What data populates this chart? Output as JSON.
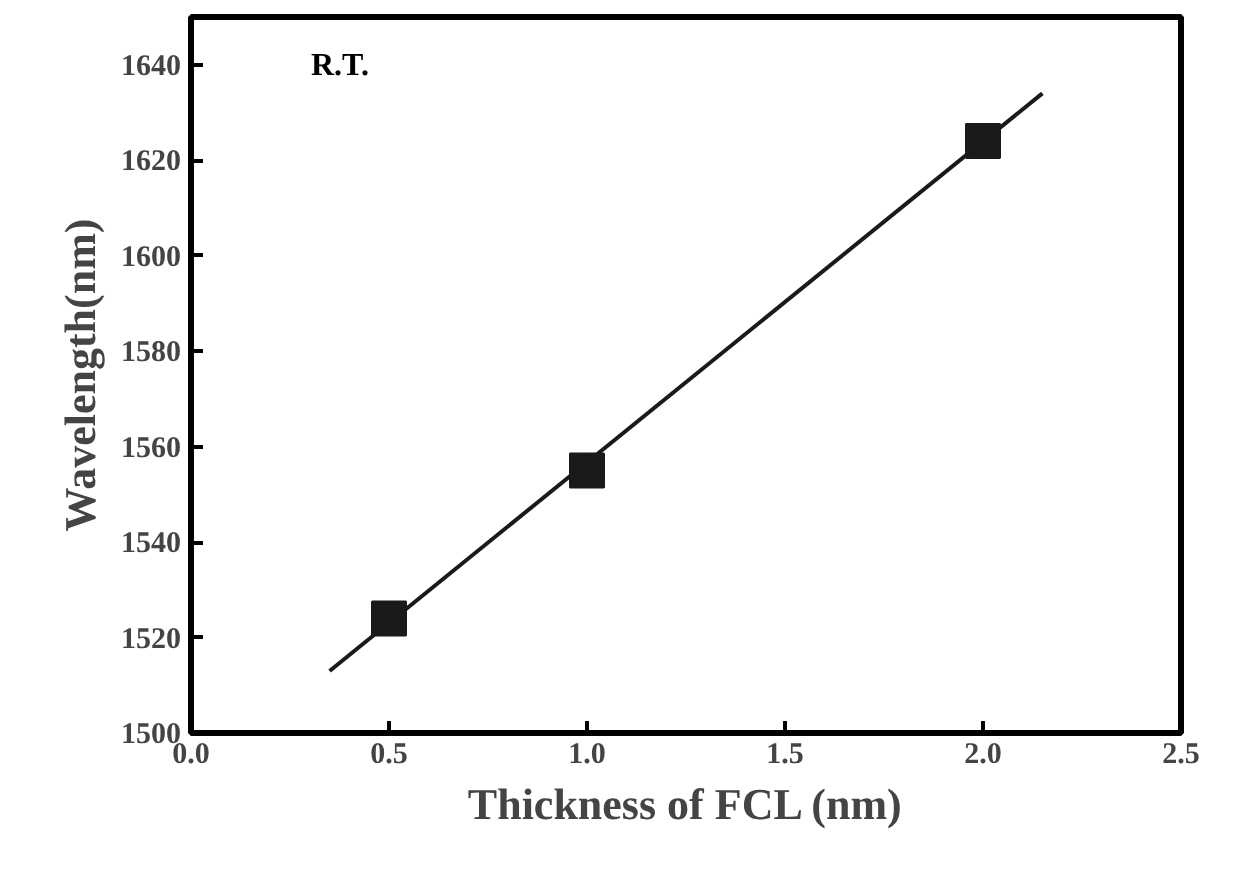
{
  "chart_data": {
    "type": "scatter",
    "xlabel": "Thickness of FCL (nm)",
    "ylabel": "Wavelength(nm)",
    "x": [
      0.5,
      1.0,
      2.0
    ],
    "series": [
      {
        "color": "#1a1a1a",
        "values": [
          1524,
          1555,
          1624
        ],
        "marker": "square"
      },
      {
        "type": "line",
        "x": [
          0.35,
          2.15
        ],
        "color": "#1a1a1a",
        "values": [
          1513,
          1634
        ],
        "marker": "none"
      }
    ],
    "annotations": [
      "R.T."
    ],
    "xlim": [
      0,
      2.5
    ],
    "ylim": [
      1500,
      1650
    ],
    "xticks": [
      "0.0",
      0.5,
      "1.0",
      1.5,
      "2.0",
      2.5
    ],
    "yticks": [
      1500,
      1520,
      1540,
      1560,
      1580,
      1600,
      1620,
      1640
    ],
    "grid": false
  }
}
